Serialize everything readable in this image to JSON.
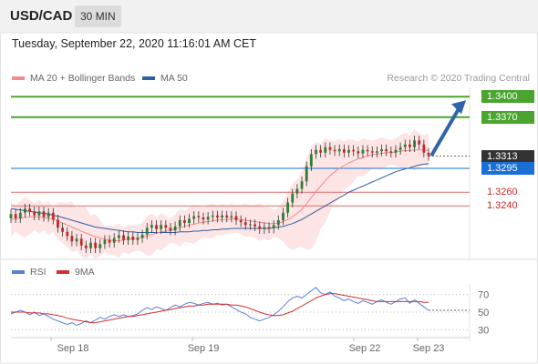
{
  "header": {
    "symbol": "USD/CAD",
    "timeframe": "30 MIN"
  },
  "date_text": "Tuesday, September 22, 2020 11:16:01 AM CET",
  "legend": {
    "ma20": "MA 20 + Bollinger Bands",
    "ma50": "MA 50",
    "credit": "Research © 2020 Trading Central"
  },
  "rsi_legend": {
    "rsi": "RSI",
    "ma": "9MA"
  },
  "colors": {
    "green": "#4aa52e",
    "red_level": "#e06b6b",
    "blue": "#1a6fd6",
    "dark": "#333333",
    "ma20": "#f08c8c",
    "ma50": "#2e5fa3",
    "band": "#fde0e0"
  },
  "chart_data": [
    {
      "type": "candlestick",
      "x_ticks": [
        "Sep 18",
        "Sep 19",
        "Sep 22",
        "Sep 23"
      ],
      "ylim": [
        1.3155,
        1.3415
      ],
      "levels": [
        {
          "value": 1.34,
          "label": "1.3400",
          "kind": "resistance"
        },
        {
          "value": 1.337,
          "label": "1.3370",
          "kind": "resistance"
        },
        {
          "value": 1.3313,
          "label": "1.3313",
          "kind": "current"
        },
        {
          "value": 1.3295,
          "label": "1.3295",
          "kind": "pivot"
        },
        {
          "value": 1.326,
          "label": "1.3260",
          "kind": "support"
        },
        {
          "value": 1.324,
          "label": "1.3240",
          "kind": "support"
        }
      ],
      "closes": [
        1.3228,
        1.3222,
        1.323,
        1.3236,
        1.3232,
        1.3226,
        1.3232,
        1.3224,
        1.323,
        1.322,
        1.3208,
        1.3202,
        1.3196,
        1.3188,
        1.3192,
        1.3182,
        1.3178,
        1.3186,
        1.3178,
        1.3184,
        1.319,
        1.3186,
        1.3193,
        1.3197,
        1.319,
        1.3195,
        1.319,
        1.3193,
        1.3198,
        1.3208,
        1.3212,
        1.3206,
        1.3212,
        1.3208,
        1.3204,
        1.321,
        1.3219,
        1.3215,
        1.3221,
        1.3225,
        1.3223,
        1.322,
        1.3224,
        1.3226,
        1.3223,
        1.3226,
        1.3223,
        1.3225,
        1.3219,
        1.3216,
        1.3212,
        1.3213,
        1.321,
        1.3206,
        1.3209,
        1.3207,
        1.3212,
        1.3219,
        1.323,
        1.3245,
        1.3258,
        1.3265,
        1.3276,
        1.3298,
        1.3316,
        1.3322,
        1.3318,
        1.3326,
        1.3322,
        1.332,
        1.3323,
        1.3318,
        1.3322,
        1.332,
        1.3317,
        1.3322,
        1.332,
        1.3318,
        1.332,
        1.3323,
        1.332,
        1.3318,
        1.3322,
        1.3326,
        1.333,
        1.3326,
        1.3336,
        1.333,
        1.3318,
        1.3313
      ],
      "ma20": [
        1.322,
        1.3221,
        1.3222,
        1.3223,
        1.3224,
        1.3224,
        1.3224,
        1.3223,
        1.3222,
        1.322,
        1.3218,
        1.3215,
        1.3212,
        1.3209,
        1.3206,
        1.3203,
        1.32,
        1.3197,
        1.3195,
        1.3193,
        1.3191,
        1.319,
        1.3189,
        1.3189,
        1.319,
        1.3191,
        1.3192,
        1.3193,
        1.3194,
        1.3196,
        1.3198,
        1.32,
        1.3202,
        1.3203,
        1.3204,
        1.3206,
        1.3208,
        1.321,
        1.3212,
        1.3213,
        1.3215,
        1.3216,
        1.3217,
        1.3218,
        1.3219,
        1.322,
        1.322,
        1.3221,
        1.3221,
        1.322,
        1.3219,
        1.3218,
        1.3217,
        1.3216,
        1.3215,
        1.3214,
        1.3214,
        1.3215,
        1.3217,
        1.322,
        1.3224,
        1.3229,
        1.3235,
        1.3243,
        1.3252,
        1.3261,
        1.3269,
        1.3277,
        1.3284,
        1.329,
        1.3295,
        1.3299,
        1.3303,
        1.3306,
        1.3309,
        1.3311,
        1.3313,
        1.3315,
        1.3316,
        1.3317,
        1.3318,
        1.3318,
        1.3319,
        1.332,
        1.3321,
        1.3321,
        1.3322,
        1.3322,
        1.3322,
        1.3321
      ],
      "ma50": [
        1.3236,
        1.3235,
        1.3234,
        1.3233,
        1.3232,
        1.3231,
        1.323,
        1.3229,
        1.3228,
        1.3226,
        1.3225,
        1.3223,
        1.3221,
        1.3219,
        1.3217,
        1.3215,
        1.3213,
        1.3211,
        1.3209,
        1.3208,
        1.3207,
        1.3206,
        1.3205,
        1.3204,
        1.3203,
        1.3202,
        1.3202,
        1.3201,
        1.3201,
        1.3201,
        1.3201,
        1.3201,
        1.3201,
        1.3201,
        1.3201,
        1.3201,
        1.3202,
        1.3202,
        1.3202,
        1.3203,
        1.3203,
        1.3204,
        1.3204,
        1.3205,
        1.3205,
        1.3206,
        1.3206,
        1.3207,
        1.3207,
        1.3207,
        1.3207,
        1.3207,
        1.3207,
        1.3207,
        1.3207,
        1.3207,
        1.3208,
        1.3209,
        1.321,
        1.3212,
        1.3214,
        1.3217,
        1.322,
        1.3224,
        1.3228,
        1.3232,
        1.3236,
        1.324,
        1.3244,
        1.3248,
        1.3252,
        1.3256,
        1.326,
        1.3263,
        1.3266,
        1.3269,
        1.3272,
        1.3275,
        1.3278,
        1.3281,
        1.3284,
        1.3287,
        1.329,
        1.3292,
        1.3294,
        1.3296,
        1.3298,
        1.33,
        1.3301,
        1.3302
      ],
      "projection": {
        "from": 1.3313,
        "to": 1.34
      }
    },
    {
      "type": "line",
      "title": "RSI",
      "ylim": [
        20,
        82
      ],
      "y_ticks": [
        70,
        50,
        30
      ],
      "series": [
        {
          "name": "RSI",
          "values": [
            48,
            50,
            52,
            50,
            47,
            50,
            46,
            48,
            45,
            42,
            40,
            38,
            36,
            38,
            35,
            37,
            40,
            38,
            41,
            44,
            42,
            45,
            47,
            45,
            47,
            45,
            46,
            48,
            52,
            55,
            53,
            56,
            54,
            52,
            55,
            58,
            56,
            59,
            61,
            60,
            58,
            60,
            61,
            59,
            60,
            58,
            59,
            56,
            53,
            50,
            48,
            44,
            42,
            40,
            42,
            44,
            47,
            51,
            56,
            62,
            66,
            68,
            66,
            70,
            74,
            78,
            72,
            70,
            73,
            68,
            66,
            63,
            65,
            62,
            60,
            63,
            61,
            59,
            62,
            64,
            61,
            59,
            62,
            65,
            66,
            60,
            64,
            60,
            56,
            52
          ]
        },
        {
          "name": "9MA",
          "values": [
            50,
            50,
            50,
            50,
            49,
            49,
            49,
            48,
            48,
            47,
            46,
            45,
            43,
            42,
            41,
            40,
            39,
            38,
            38,
            39,
            40,
            41,
            42,
            43,
            44,
            45,
            45,
            46,
            47,
            48,
            49,
            50,
            51,
            52,
            53,
            54,
            55,
            56,
            57,
            57,
            58,
            58,
            59,
            59,
            59,
            59,
            59,
            58,
            58,
            57,
            56,
            54,
            52,
            50,
            48,
            47,
            46,
            46,
            47,
            49,
            51,
            54,
            57,
            60,
            63,
            66,
            68,
            70,
            71,
            71,
            70,
            69,
            68,
            67,
            66,
            65,
            64,
            63,
            62,
            62,
            62,
            62,
            62,
            62,
            62,
            62,
            62,
            62,
            61,
            61
          ]
        }
      ]
    }
  ]
}
